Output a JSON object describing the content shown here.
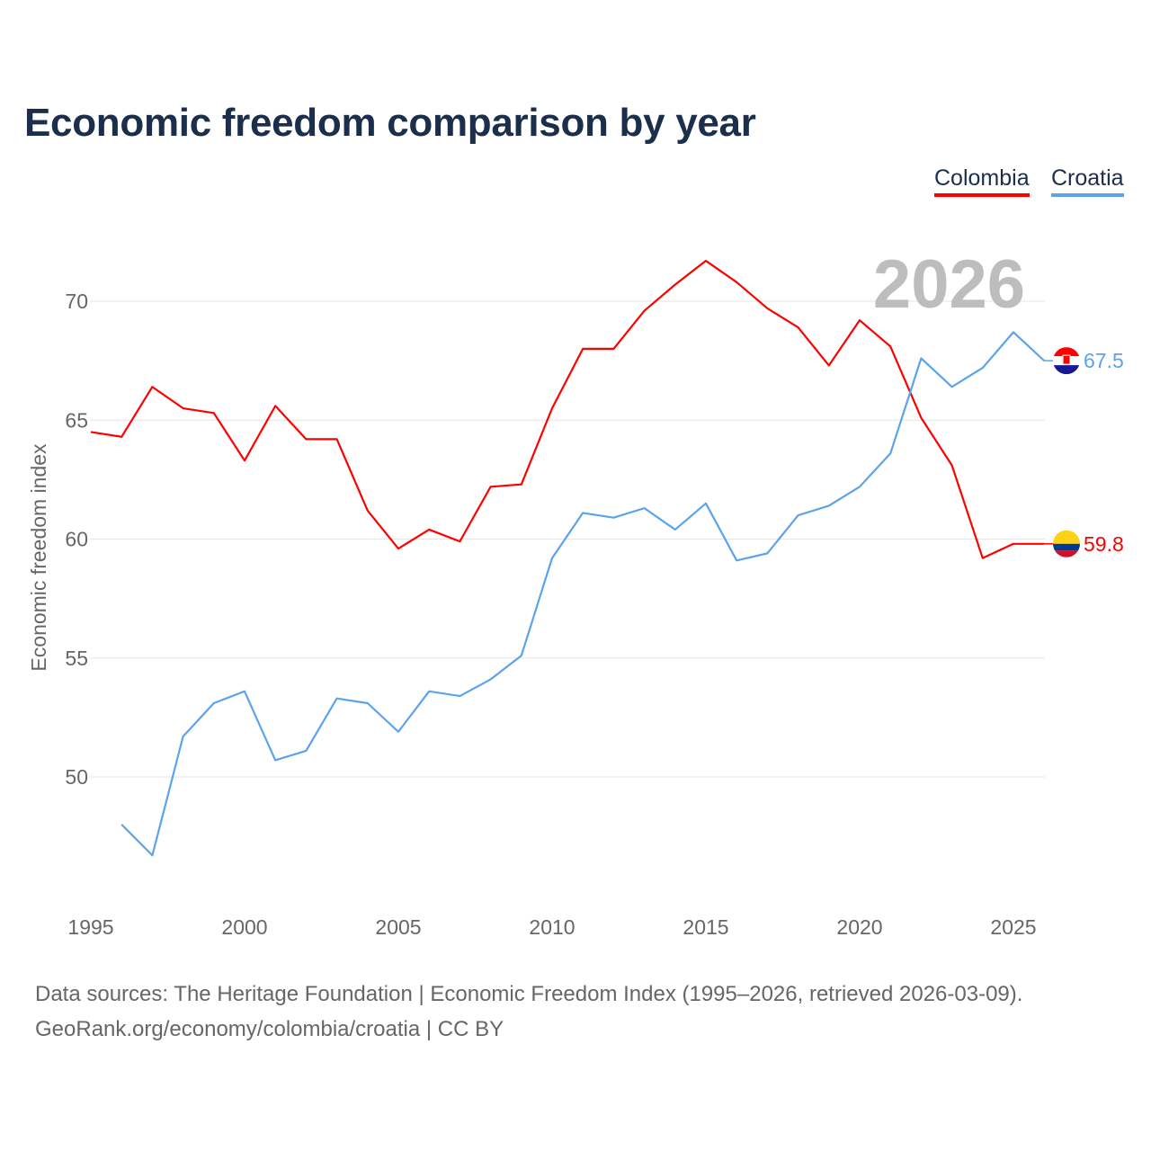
{
  "title": "Economic freedom comparison by year",
  "footer": {
    "line1": "Data sources: The Heritage Foundation | Economic Freedom Index (1995–2026, retrieved 2026-03-09).",
    "line2": "GeoRank.org/economy/colombia/croatia | CC BY"
  },
  "chart_data": {
    "type": "line",
    "title": "Economic freedom comparison by year",
    "xlabel": "",
    "ylabel": "Economic freedom index",
    "year_watermark": "2026",
    "xlim": [
      1995,
      2026
    ],
    "ylim": [
      45.2,
      72.8
    ],
    "xticks": [
      "1995",
      "2000",
      "2005",
      "2010",
      "2015",
      "2020",
      "2025"
    ],
    "yticks": [
      "50",
      "55",
      "60",
      "65",
      "70"
    ],
    "grid": true,
    "legend_position": "top-right",
    "series": [
      {
        "name": "Colombia",
        "color": "#ff0000",
        "end_label": "59.8",
        "flag": "colombia-flag",
        "x": [
          1995,
          1996,
          1997,
          1998,
          1999,
          2000,
          2001,
          2002,
          2003,
          2004,
          2005,
          2006,
          2007,
          2008,
          2009,
          2010,
          2011,
          2012,
          2013,
          2014,
          2015,
          2016,
          2017,
          2018,
          2019,
          2020,
          2021,
          2022,
          2023,
          2024,
          2025,
          2026
        ],
        "values": [
          64.5,
          64.3,
          66.4,
          65.5,
          65.3,
          63.3,
          65.6,
          64.2,
          64.2,
          61.2,
          59.6,
          60.4,
          59.9,
          62.2,
          62.3,
          65.5,
          68.0,
          68.0,
          69.6,
          70.7,
          71.7,
          70.8,
          69.7,
          68.9,
          67.3,
          69.2,
          68.1,
          65.1,
          63.1,
          59.2,
          59.8,
          59.8
        ]
      },
      {
        "name": "Croatia",
        "color": "#5ba3ea",
        "end_label": "67.5",
        "flag": "croatia-flag",
        "x": [
          1996,
          1997,
          1998,
          1999,
          2000,
          2001,
          2002,
          2003,
          2004,
          2005,
          2006,
          2007,
          2008,
          2009,
          2010,
          2011,
          2012,
          2013,
          2014,
          2015,
          2016,
          2017,
          2018,
          2019,
          2020,
          2021,
          2022,
          2023,
          2024,
          2025,
          2026
        ],
        "values": [
          48.0,
          46.7,
          51.7,
          53.1,
          53.6,
          50.7,
          51.1,
          53.3,
          53.1,
          51.9,
          53.6,
          53.4,
          54.1,
          55.1,
          59.2,
          61.1,
          60.9,
          61.3,
          60.4,
          61.5,
          59.1,
          59.4,
          61.0,
          61.4,
          62.2,
          63.6,
          67.6,
          66.4,
          67.2,
          68.7,
          67.5
        ]
      }
    ]
  }
}
